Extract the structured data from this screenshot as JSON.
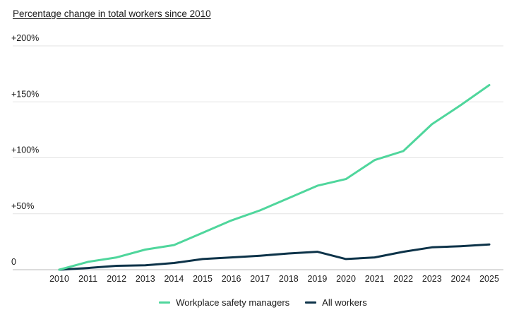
{
  "chart_data": {
    "type": "line",
    "title": "Percentage change in total workers since 2010",
    "xlabel": "",
    "ylabel": "",
    "x": [
      "2010",
      "2011",
      "2012",
      "2013",
      "2014",
      "2015",
      "2016",
      "2017",
      "2018",
      "2019",
      "2020",
      "2021",
      "2022",
      "2023",
      "2024",
      "2025"
    ],
    "ylim": [
      0,
      200
    ],
    "y_ticks": [
      {
        "value": 0,
        "label": "0"
      },
      {
        "value": 50,
        "label": "+50%"
      },
      {
        "value": 100,
        "label": "+100%"
      },
      {
        "value": 150,
        "label": "+150%"
      },
      {
        "value": 200,
        "label": "+200%"
      }
    ],
    "grid": true,
    "legend_position": "bottom-center",
    "series": [
      {
        "name": "Workplace safety managers",
        "color": "#4fd69c",
        "values": [
          0,
          7,
          11,
          18,
          22,
          33,
          44,
          53,
          64,
          75,
          81,
          98,
          106,
          130,
          147,
          165
        ]
      },
      {
        "name": "All workers",
        "color": "#0d3349",
        "values": [
          0,
          1.5,
          3.5,
          4,
          6,
          9.5,
          11,
          12.5,
          14.5,
          16,
          9.5,
          11,
          16,
          20,
          21,
          22.5
        ]
      }
    ]
  }
}
